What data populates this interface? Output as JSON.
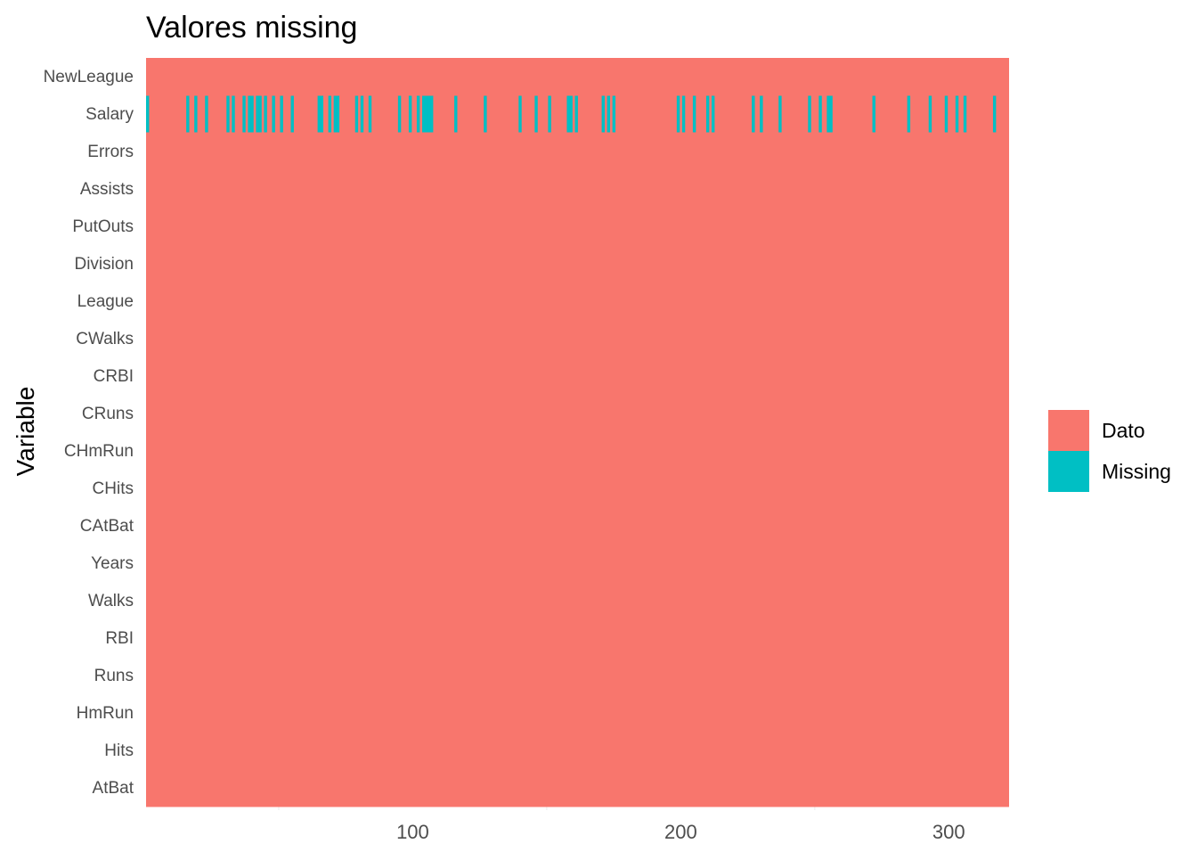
{
  "chart_data": {
    "type": "heatmap",
    "title": "Valores missing",
    "ylabel": "Variable",
    "xlabel": "",
    "x_range": [
      1,
      322
    ],
    "x_ticks": [
      100,
      200,
      300
    ],
    "grid": true,
    "legend_position": "right",
    "legend": [
      {
        "label": "Dato",
        "color": "#F8766D"
      },
      {
        "label": "Missing",
        "color": "#00BFC4"
      }
    ],
    "variables_top_to_bottom": [
      "NewLeague",
      "Salary",
      "Errors",
      "Assists",
      "PutOuts",
      "Division",
      "League",
      "CWalks",
      "CRBI",
      "CRuns",
      "CHmRun",
      "CHits",
      "CAtBat",
      "Years",
      "Walks",
      "RBI",
      "Runs",
      "HmRun",
      "Hits",
      "AtBat"
    ],
    "missing": {
      "Salary": [
        1,
        16,
        19,
        23,
        31,
        33,
        37,
        39,
        40,
        42,
        43,
        45,
        48,
        51,
        55,
        65,
        66,
        69,
        71,
        72,
        79,
        81,
        84,
        95,
        99,
        102,
        104,
        105,
        106,
        107,
        116,
        127,
        140,
        146,
        151,
        158,
        159,
        161,
        171,
        173,
        175,
        199,
        201,
        205,
        210,
        212,
        227,
        230,
        237,
        248,
        252,
        255,
        256,
        272,
        285,
        293,
        299,
        303,
        306,
        317
      ]
    }
  }
}
